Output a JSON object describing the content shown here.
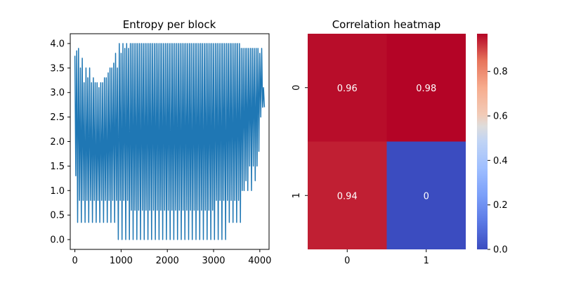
{
  "chart_data": [
    {
      "type": "line",
      "title": "Entropy per block",
      "xlabel": "",
      "ylabel": "",
      "xlim": [
        -100,
        4200
      ],
      "ylim": [
        -0.2,
        4.2
      ],
      "x_ticks": [
        0,
        1000,
        2000,
        3000,
        4000
      ],
      "x_tick_labels": [
        "0",
        "1000",
        "2000",
        "3000",
        "4000"
      ],
      "y_ticks": [
        0.0,
        0.5,
        1.0,
        1.5,
        2.0,
        2.5,
        3.0,
        3.5,
        4.0
      ],
      "y_tick_labels": [
        "0.0",
        "0.5",
        "1.0",
        "1.5",
        "2.0",
        "2.5",
        "3.0",
        "3.5",
        "4.0"
      ],
      "grid": false,
      "color": "#1f77b4",
      "series": [
        {
          "x": [
            0,
            40,
            80,
            120,
            160,
            200,
            240,
            280,
            320,
            360,
            400,
            440,
            480,
            520,
            560,
            600,
            640,
            680,
            720,
            760,
            800,
            840,
            880,
            920,
            960,
            1000,
            1040,
            1080,
            1120,
            1160,
            1200,
            1240,
            1280,
            1320,
            1360,
            1400,
            1440,
            1480,
            1520,
            1560,
            1600,
            1640,
            1680,
            1720,
            1760,
            1800,
            1840,
            1880,
            1920,
            1960,
            2000,
            2040,
            2080,
            2120,
            2160,
            2200,
            2240,
            2280,
            2320,
            2360,
            2400,
            2440,
            2480,
            2520,
            2560,
            2600,
            2640,
            2680,
            2720,
            2760,
            2800,
            2840,
            2880,
            2920,
            2960,
            3000,
            3040,
            3080,
            3120,
            3160,
            3200,
            3240,
            3280,
            3320,
            3360,
            3400,
            3440,
            3480,
            3520,
            3560,
            3600,
            3640,
            3680,
            3720,
            3760,
            3800,
            3840,
            3880,
            3920,
            3960,
            4000,
            4040,
            4080
          ],
          "y_min": [
            1.3,
            0.35,
            0.8,
            0.35,
            0.8,
            0.35,
            0.8,
            0.35,
            0.8,
            0.35,
            0.8,
            0.35,
            0.8,
            0.35,
            0.8,
            0.35,
            0.8,
            0.35,
            0.8,
            0.35,
            0.8,
            0.35,
            0.8,
            0.0,
            0.8,
            0.0,
            0.8,
            0.0,
            0.8,
            0.0,
            0.6,
            0.0,
            0.6,
            0.0,
            0.6,
            0.0,
            0.6,
            0.0,
            0.6,
            0.0,
            0.6,
            0.0,
            0.6,
            0.0,
            0.6,
            0.0,
            0.6,
            0.0,
            0.6,
            0.0,
            0.6,
            0.0,
            0.6,
            0.0,
            0.6,
            0.0,
            0.6,
            0.0,
            0.6,
            0.0,
            0.6,
            0.0,
            0.6,
            0.0,
            0.6,
            0.0,
            0.6,
            0.0,
            0.6,
            0.0,
            0.6,
            0.0,
            0.6,
            0.0,
            0.6,
            0.0,
            0.8,
            0.0,
            0.8,
            0.0,
            0.8,
            0.0,
            0.8,
            0.35,
            0.8,
            0.35,
            0.8,
            0.35,
            0.8,
            0.35,
            1.0,
            1.0,
            1.2,
            1.0,
            1.5,
            1.0,
            1.5,
            1.2,
            1.5,
            1.8,
            2.5,
            2.7,
            2.7
          ],
          "y_max": [
            3.75,
            3.85,
            3.9,
            3.5,
            3.7,
            3.2,
            3.5,
            3.3,
            3.5,
            3.2,
            3.3,
            3.2,
            3.2,
            3.1,
            3.2,
            3.2,
            3.3,
            3.3,
            3.4,
            3.5,
            3.5,
            3.6,
            3.8,
            3.5,
            4.0,
            3.8,
            4.0,
            3.9,
            4.0,
            3.9,
            4.0,
            4.0,
            4.0,
            4.0,
            4.0,
            4.0,
            4.0,
            4.0,
            4.0,
            4.0,
            4.0,
            4.0,
            4.0,
            4.0,
            4.0,
            4.0,
            4.0,
            4.0,
            4.0,
            4.0,
            4.0,
            4.0,
            4.0,
            4.0,
            4.0,
            4.0,
            4.0,
            4.0,
            4.0,
            4.0,
            4.0,
            4.0,
            4.0,
            4.0,
            4.0,
            4.0,
            4.0,
            4.0,
            4.0,
            4.0,
            4.0,
            4.0,
            4.0,
            4.0,
            4.0,
            4.0,
            4.0,
            4.0,
            4.0,
            4.0,
            4.0,
            4.0,
            4.0,
            4.0,
            4.0,
            4.0,
            4.0,
            4.0,
            4.0,
            4.0,
            3.9,
            3.9,
            3.9,
            3.9,
            3.9,
            3.9,
            3.9,
            3.9,
            3.9,
            3.9,
            3.8,
            3.9,
            3.1
          ]
        }
      ]
    },
    {
      "type": "heatmap",
      "title": "Correlation heatmap",
      "x_categories": [
        "0",
        "1"
      ],
      "y_categories": [
        "0",
        "1"
      ],
      "values": [
        [
          0.96,
          0.98
        ],
        [
          0.94,
          0.0
        ]
      ],
      "cell_labels": [
        [
          "0.96",
          "0.98"
        ],
        [
          "0.94",
          "0"
        ]
      ],
      "colormap": "coolwarm",
      "colorbar": {
        "range": [
          0.0,
          0.9696
        ],
        "ticks": [
          0.0,
          0.2,
          0.4,
          0.6,
          0.8
        ],
        "tick_labels": [
          "0.0",
          "0.2",
          "0.4",
          "0.6",
          "0.8"
        ]
      }
    }
  ]
}
